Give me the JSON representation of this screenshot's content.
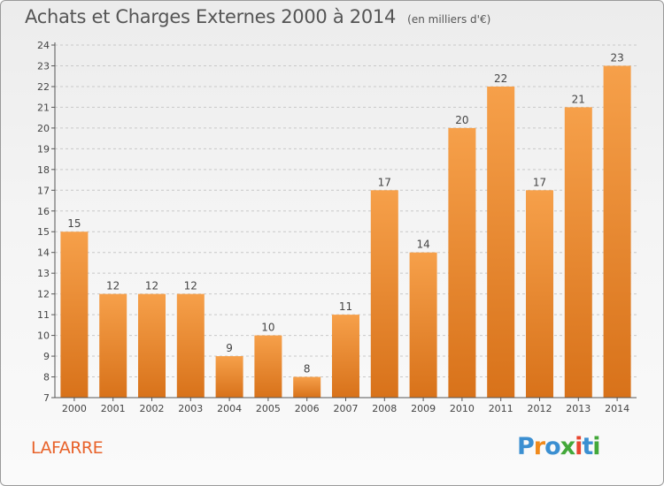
{
  "header": {
    "title": "Achats et Charges Externes 2000 à 2014",
    "unit": "(en milliers d'€)"
  },
  "footer": {
    "commune": "LAFARRE",
    "logo_letters": [
      "P",
      "r",
      "o",
      "x",
      "i",
      "t",
      "i"
    ],
    "logo_colors": [
      "#3b8fd1",
      "#f08a1c",
      "#3b8fd1",
      "#43a83a",
      "#e8452f",
      "#3b8fd1",
      "#43a83a"
    ]
  },
  "colors": {
    "bar_light": "#f6a04a",
    "bar_dark": "#d8721a",
    "grid": "#c8c8c8",
    "axis": "#555555",
    "commune": "#e8622a"
  },
  "chart_data": {
    "type": "bar",
    "title": "Achats et Charges Externes 2000 à 2014",
    "xlabel": "",
    "ylabel": "",
    "categories": [
      "2000",
      "2001",
      "2002",
      "2003",
      "2004",
      "2005",
      "2006",
      "2007",
      "2008",
      "2009",
      "2010",
      "2011",
      "2012",
      "2013",
      "2014"
    ],
    "values": [
      15,
      12,
      12,
      12,
      9,
      10,
      8,
      11,
      17,
      14,
      20,
      22,
      17,
      21,
      23
    ],
    "ylim": [
      7,
      24
    ],
    "yticks": [
      7,
      8,
      9,
      10,
      11,
      12,
      13,
      14,
      15,
      16,
      17,
      18,
      19,
      20,
      21,
      22,
      23,
      24
    ],
    "grid": true,
    "data_labels": true
  }
}
